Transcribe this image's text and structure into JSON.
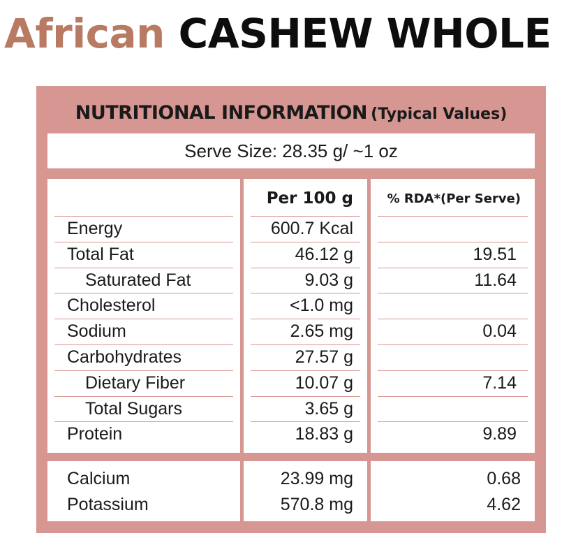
{
  "title": {
    "accent": "African",
    "main": "CASHEW WHOLE"
  },
  "colors": {
    "accent": "#b87a63",
    "panel": "#d69692",
    "text": "#1a1a1a"
  },
  "panel": {
    "heading_main": "NUTRITIONAL INFORMATION",
    "heading_sub": "(Typical Values)",
    "serve_size": "Serve Size: 28.35 g/ ~1 oz"
  },
  "table": {
    "col_per100": "Per 100 g",
    "col_rda": "% RDA*(Per Serve)",
    "rows": [
      {
        "name": "Energy",
        "per100": "600.7 Kcal",
        "rda": "",
        "indent": false
      },
      {
        "name": "Total Fat",
        "per100": "46.12 g",
        "rda": "19.51",
        "indent": false
      },
      {
        "name": "Saturated Fat",
        "per100": "9.03 g",
        "rda": "11.64",
        "indent": true
      },
      {
        "name": "Cholesterol",
        "per100": "<1.0 mg",
        "rda": "",
        "indent": false
      },
      {
        "name": "Sodium",
        "per100": "2.65 mg",
        "rda": "0.04",
        "indent": false
      },
      {
        "name": "Carbohydrates",
        "per100": "27.57 g",
        "rda": "",
        "indent": false
      },
      {
        "name": "Dietary Fiber",
        "per100": "10.07 g",
        "rda": "7.14",
        "indent": true
      },
      {
        "name": "Total Sugars",
        "per100": "3.65 g",
        "rda": "",
        "indent": true
      },
      {
        "name": "Protein",
        "per100": "18.83 g",
        "rda": "9.89",
        "indent": false
      }
    ],
    "minerals": [
      {
        "name": "Calcium",
        "per100": "23.99 mg",
        "rda": "0.68"
      },
      {
        "name": "Potassium",
        "per100": "570.8 mg",
        "rda": "4.62"
      }
    ]
  }
}
